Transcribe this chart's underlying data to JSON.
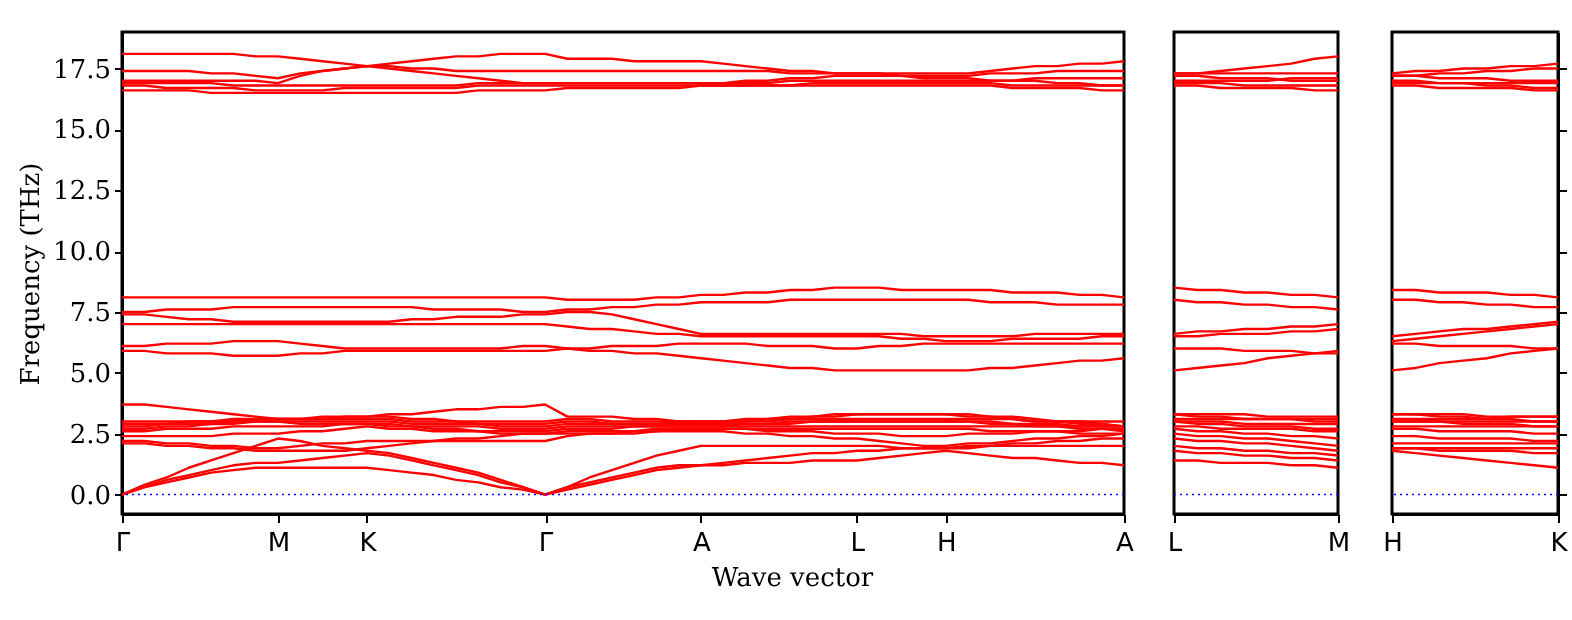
{
  "chart_data": [
    {
      "type": "line",
      "xlabel": "Wave vector",
      "ylabel": "Frequency (THz)",
      "categories": [
        "Γ",
        null,
        null,
        null,
        null,
        null,
        null,
        "M",
        null,
        null,
        null,
        "K",
        null,
        null,
        null,
        null,
        null,
        null,
        null,
        "Γ",
        null,
        null,
        null,
        null,
        null,
        null,
        "A",
        null,
        null,
        null,
        null,
        null,
        null,
        "L",
        null,
        null,
        null,
        "H",
        null,
        null,
        null,
        null,
        null,
        null,
        null,
        "A"
      ],
      "ylim": [
        -0.8,
        19
      ],
      "yticks": [
        {
          "value": 0,
          "label": "0.0"
        },
        2.5,
        {
          "value": 5,
          "label": "5.0"
        },
        7.5,
        {
          "value": 10,
          "label": "10.0"
        },
        12.5,
        {
          "value": 15,
          "label": "15.0"
        },
        17.5
      ],
      "ref_lines": [
        {
          "axis": "y",
          "value": 0,
          "color": "#0000ff",
          "line_style": "dotted"
        }
      ],
      "grid": false,
      "legend": false,
      "series": [
        {
          "color": "#ff0000",
          "values": [
            0,
            0.3,
            0.5,
            0.7,
            0.9,
            1.0,
            1.1,
            1.1,
            1.1,
            1.1,
            1.1,
            1.1,
            1.0,
            0.9,
            0.8,
            0.6,
            0.5,
            0.3,
            0.2,
            0,
            0.2,
            0.4,
            0.6,
            0.8,
            1.0,
            1.1,
            1.2,
            1.2,
            1.3,
            1.3,
            1.3,
            1.4,
            1.4,
            1.4,
            1.5,
            1.6,
            1.7,
            1.8,
            1.7,
            1.6,
            1.5,
            1.5,
            1.4,
            1.3,
            1.3,
            1.2
          ]
        },
        {
          "color": "#ff0000",
          "values": [
            0,
            0.3,
            0.6,
            0.8,
            1.0,
            1.2,
            1.3,
            1.3,
            1.4,
            1.5,
            1.6,
            1.7,
            1.6,
            1.4,
            1.2,
            1.0,
            0.8,
            0.5,
            0.3,
            0,
            0.3,
            0.5,
            0.7,
            0.9,
            1.1,
            1.2,
            1.2,
            1.3,
            1.4,
            1.5,
            1.6,
            1.7,
            1.7,
            1.8,
            1.8,
            1.9,
            1.9,
            1.9,
            1.9,
            2.0,
            2.0,
            2.0,
            2.0,
            2.0,
            2.0,
            2.0
          ]
        },
        {
          "color": "#ff0000",
          "values": [
            0,
            0.4,
            0.7,
            1.1,
            1.4,
            1.7,
            2.0,
            2.3,
            2.2,
            2.0,
            1.9,
            1.8,
            1.7,
            1.5,
            1.3,
            1.1,
            0.9,
            0.6,
            0.3,
            0,
            0.3,
            0.7,
            1.0,
            1.3,
            1.6,
            1.8,
            2.0,
            2.0,
            2.0,
            2.0,
            2.0,
            2.0,
            2.0,
            2.0,
            2.0,
            1.9,
            1.9,
            1.9,
            2.0,
            2.0,
            2.1,
            2.1,
            2.2,
            2.2,
            2.3,
            2.3
          ]
        },
        {
          "color": "#ff0000",
          "values": [
            2.1,
            2.1,
            2.0,
            2.0,
            1.9,
            1.9,
            1.8,
            1.8,
            1.8,
            1.8,
            1.8,
            1.9,
            2.0,
            2.1,
            2.2,
            2.3,
            2.3,
            2.4,
            2.5,
            2.5,
            2.5,
            2.5,
            2.5,
            2.5,
            2.6,
            2.6,
            2.6,
            2.6,
            2.5,
            2.5,
            2.4,
            2.4,
            2.3,
            2.3,
            2.2,
            2.1,
            2.0,
            2.0,
            2.1,
            2.1,
            2.2,
            2.3,
            2.3,
            2.4,
            2.4,
            2.5
          ]
        },
        {
          "color": "#ff0000",
          "values": [
            2.2,
            2.2,
            2.1,
            2.1,
            2.0,
            2.0,
            1.9,
            1.9,
            2.0,
            2.1,
            2.1,
            2.2,
            2.2,
            2.2,
            2.2,
            2.2,
            2.2,
            2.2,
            2.2,
            2.2,
            2.4,
            2.5,
            2.5,
            2.6,
            2.6,
            2.7,
            2.7,
            2.7,
            2.7,
            2.6,
            2.6,
            2.6,
            2.5,
            2.5,
            2.5,
            2.4,
            2.4,
            2.4,
            2.5,
            2.5,
            2.5,
            2.6,
            2.6,
            2.6,
            2.7,
            2.7
          ]
        },
        {
          "color": "#ff0000",
          "values": [
            2.4,
            2.4,
            2.4,
            2.4,
            2.4,
            2.5,
            2.5,
            2.5,
            2.6,
            2.6,
            2.7,
            2.8,
            2.7,
            2.7,
            2.6,
            2.6,
            2.6,
            2.5,
            2.5,
            2.5,
            2.6,
            2.6,
            2.6,
            2.6,
            2.7,
            2.7,
            2.7,
            2.7,
            2.7,
            2.7,
            2.7,
            2.7,
            2.7,
            2.7,
            2.7,
            2.7,
            2.7,
            2.7,
            2.7,
            2.6,
            2.6,
            2.6,
            2.6,
            2.5,
            2.5,
            2.5
          ]
        },
        {
          "color": "#ff0000",
          "values": [
            2.6,
            2.6,
            2.7,
            2.7,
            2.7,
            2.8,
            2.8,
            2.8,
            2.8,
            2.8,
            2.9,
            2.9,
            2.8,
            2.8,
            2.7,
            2.7,
            2.6,
            2.6,
            2.6,
            2.6,
            2.7,
            2.7,
            2.7,
            2.8,
            2.8,
            2.8,
            2.8,
            2.8,
            2.8,
            2.8,
            2.8,
            2.8,
            2.8,
            2.8,
            2.8,
            2.8,
            2.8,
            2.8,
            2.8,
            2.8,
            2.8,
            2.8,
            2.8,
            2.8,
            2.8,
            2.8
          ]
        },
        {
          "color": "#ff0000",
          "values": [
            2.7,
            2.7,
            2.8,
            2.8,
            2.9,
            2.9,
            3.0,
            3.0,
            2.9,
            2.9,
            2.9,
            2.9,
            2.9,
            2.8,
            2.8,
            2.8,
            2.8,
            2.7,
            2.7,
            2.7,
            2.8,
            2.8,
            2.8,
            2.8,
            2.8,
            2.8,
            2.8,
            2.8,
            2.9,
            2.9,
            2.9,
            3.0,
            3.0,
            3.0,
            3.0,
            3.0,
            3.0,
            3.0,
            3.0,
            2.9,
            2.9,
            2.8,
            2.8,
            2.7,
            2.7,
            2.6
          ]
        },
        {
          "color": "#ff0000",
          "values": [
            2.8,
            2.8,
            2.9,
            2.9,
            2.9,
            3.0,
            3.0,
            3.0,
            3.0,
            3.0,
            3.0,
            3.0,
            3.0,
            2.9,
            2.9,
            2.9,
            2.9,
            2.8,
            2.8,
            2.8,
            2.9,
            2.9,
            2.9,
            2.9,
            2.9,
            2.9,
            2.9,
            2.9,
            2.9,
            2.9,
            3.0,
            3.0,
            3.0,
            3.0,
            3.0,
            3.0,
            3.0,
            3.0,
            3.0,
            3.0,
            2.9,
            2.9,
            2.9,
            2.8,
            2.8,
            2.8
          ]
        },
        {
          "color": "#ff0000",
          "values": [
            2.9,
            2.9,
            2.9,
            3.0,
            3.0,
            3.0,
            3.1,
            3.1,
            3.1,
            3.1,
            3.1,
            3.1,
            3.1,
            3.0,
            3.0,
            3.0,
            2.9,
            2.9,
            2.9,
            2.9,
            3.0,
            3.0,
            2.9,
            2.9,
            2.9,
            3.0,
            3.0,
            3.0,
            3.0,
            3.0,
            3.1,
            3.1,
            3.1,
            3.1,
            3.1,
            3.1,
            3.1,
            3.1,
            3.1,
            3.1,
            3.1,
            3.0,
            3.0,
            3.0,
            3.0,
            3.0
          ]
        },
        {
          "color": "#ff0000",
          "values": [
            3.0,
            3.0,
            3.0,
            3.0,
            3.0,
            3.1,
            3.1,
            3.1,
            3.1,
            3.1,
            3.2,
            3.2,
            3.2,
            3.1,
            3.1,
            3.0,
            3.0,
            3.0,
            3.0,
            3.0,
            3.1,
            3.1,
            3.0,
            3.0,
            3.0,
            3.0,
            3.0,
            3.0,
            3.1,
            3.1,
            3.2,
            3.2,
            3.3,
            3.3,
            3.3,
            3.3,
            3.3,
            3.3,
            3.3,
            3.2,
            3.2,
            3.1,
            3.0,
            3.0,
            2.9,
            2.8
          ]
        },
        {
          "color": "#ff0000",
          "values": [
            3.7,
            3.7,
            3.6,
            3.5,
            3.4,
            3.3,
            3.2,
            3.1,
            3.1,
            3.2,
            3.2,
            3.2,
            3.3,
            3.3,
            3.4,
            3.5,
            3.5,
            3.6,
            3.6,
            3.7,
            3.2,
            3.2,
            3.2,
            3.1,
            3.1,
            3.0,
            2.9,
            3.0,
            3.0,
            3.1,
            3.1,
            3.2,
            3.2,
            3.3,
            3.3,
            3.3,
            3.3,
            3.3,
            3.2,
            3.2,
            3.1,
            3.0,
            3.0,
            2.9,
            2.9,
            2.8
          ]
        },
        {
          "color": "#ff0000",
          "values": [
            5.9,
            5.9,
            5.8,
            5.8,
            5.8,
            5.7,
            5.7,
            5.7,
            5.8,
            5.8,
            5.9,
            5.9,
            5.9,
            5.9,
            5.9,
            5.9,
            5.9,
            5.9,
            5.9,
            5.9,
            6.0,
            5.9,
            5.9,
            5.8,
            5.8,
            5.7,
            5.6,
            5.5,
            5.4,
            5.3,
            5.2,
            5.2,
            5.1,
            5.1,
            5.1,
            5.1,
            5.1,
            5.1,
            5.1,
            5.2,
            5.2,
            5.3,
            5.4,
            5.5,
            5.5,
            5.6
          ]
        },
        {
          "color": "#ff0000",
          "values": [
            6.1,
            6.1,
            6.2,
            6.2,
            6.2,
            6.3,
            6.3,
            6.3,
            6.2,
            6.1,
            6.0,
            6.0,
            6.0,
            6.0,
            6.0,
            6.0,
            6.0,
            6.0,
            6.1,
            6.1,
            6.0,
            6.0,
            6.1,
            6.1,
            6.1,
            6.2,
            6.2,
            6.2,
            6.2,
            6.1,
            6.1,
            6.1,
            6.0,
            6.0,
            6.1,
            6.1,
            6.2,
            6.2,
            6.2,
            6.2,
            6.2,
            6.2,
            6.2,
            6.2,
            6.2,
            6.2
          ]
        },
        {
          "color": "#ff0000",
          "values": [
            7.0,
            7.0,
            7.0,
            7.0,
            7.0,
            7.0,
            7.0,
            7.0,
            7.0,
            7.0,
            7.0,
            7.0,
            7.0,
            7.0,
            7.0,
            7.0,
            7.0,
            7.0,
            7.0,
            7.0,
            6.9,
            6.8,
            6.8,
            6.7,
            6.6,
            6.6,
            6.5,
            6.5,
            6.5,
            6.5,
            6.5,
            6.5,
            6.5,
            6.5,
            6.5,
            6.4,
            6.4,
            6.3,
            6.3,
            6.3,
            6.4,
            6.4,
            6.4,
            6.4,
            6.5,
            6.5
          ]
        },
        {
          "color": "#ff0000",
          "values": [
            7.4,
            7.4,
            7.3,
            7.2,
            7.2,
            7.1,
            7.1,
            7.1,
            7.1,
            7.1,
            7.1,
            7.1,
            7.1,
            7.2,
            7.2,
            7.3,
            7.3,
            7.3,
            7.4,
            7.4,
            7.5,
            7.5,
            7.4,
            7.2,
            7.0,
            6.8,
            6.6,
            6.6,
            6.6,
            6.6,
            6.6,
            6.6,
            6.6,
            6.6,
            6.6,
            6.6,
            6.5,
            6.5,
            6.5,
            6.5,
            6.5,
            6.6,
            6.6,
            6.6,
            6.6,
            6.6
          ]
        },
        {
          "color": "#ff0000",
          "values": [
            7.5,
            7.5,
            7.6,
            7.6,
            7.6,
            7.7,
            7.7,
            7.7,
            7.7,
            7.7,
            7.7,
            7.7,
            7.7,
            7.7,
            7.6,
            7.6,
            7.6,
            7.6,
            7.5,
            7.5,
            7.6,
            7.6,
            7.7,
            7.7,
            7.8,
            7.8,
            7.9,
            7.9,
            7.9,
            7.9,
            8.0,
            8.0,
            8.0,
            8.0,
            8.0,
            8.0,
            8.0,
            8.0,
            8.0,
            7.9,
            7.9,
            7.9,
            7.8,
            7.8,
            7.8,
            7.8
          ]
        },
        {
          "color": "#ff0000",
          "values": [
            8.1,
            8.1,
            8.1,
            8.1,
            8.1,
            8.1,
            8.1,
            8.1,
            8.1,
            8.1,
            8.1,
            8.1,
            8.1,
            8.1,
            8.1,
            8.1,
            8.1,
            8.1,
            8.1,
            8.1,
            8.0,
            8.0,
            8.0,
            8.0,
            8.1,
            8.1,
            8.2,
            8.2,
            8.3,
            8.3,
            8.4,
            8.4,
            8.5,
            8.5,
            8.5,
            8.4,
            8.4,
            8.4,
            8.4,
            8.4,
            8.3,
            8.3,
            8.3,
            8.2,
            8.2,
            8.1
          ]
        },
        {
          "color": "#ff0000",
          "values": [
            16.6,
            16.6,
            16.6,
            16.6,
            16.5,
            16.5,
            16.5,
            16.5,
            16.5,
            16.5,
            16.5,
            16.5,
            16.5,
            16.5,
            16.5,
            16.5,
            16.6,
            16.6,
            16.6,
            16.6,
            16.7,
            16.7,
            16.7,
            16.7,
            16.7,
            16.7,
            16.8,
            16.8,
            16.8,
            16.8,
            16.8,
            16.8,
            16.8,
            16.8,
            16.8,
            16.8,
            16.8,
            16.8,
            16.8,
            16.8,
            16.7,
            16.7,
            16.7,
            16.7,
            16.6,
            16.6
          ]
        },
        {
          "color": "#ff0000",
          "values": [
            16.8,
            16.8,
            16.7,
            16.7,
            16.7,
            16.7,
            16.6,
            16.6,
            16.6,
            16.6,
            16.7,
            16.7,
            16.7,
            16.7,
            16.7,
            16.7,
            16.8,
            16.8,
            16.8,
            16.8,
            16.8,
            16.8,
            16.8,
            16.8,
            16.8,
            16.8,
            16.8,
            16.8,
            16.8,
            16.8,
            16.8,
            16.9,
            16.9,
            16.9,
            16.9,
            16.9,
            16.9,
            16.9,
            16.9,
            16.9,
            16.8,
            16.8,
            16.8,
            16.8,
            16.8,
            16.8
          ]
        },
        {
          "color": "#ff0000",
          "values": [
            16.9,
            16.9,
            16.9,
            16.9,
            16.9,
            16.8,
            16.8,
            16.8,
            16.8,
            16.8,
            16.8,
            16.8,
            16.8,
            16.8,
            16.8,
            16.8,
            16.9,
            16.9,
            16.9,
            16.9,
            16.9,
            16.9,
            16.9,
            16.9,
            16.9,
            16.9,
            16.9,
            16.9,
            16.9,
            16.9,
            17.0,
            17.0,
            17.0,
            17.0,
            17.0,
            17.0,
            17.0,
            17.0,
            17.0,
            17.0,
            17.0,
            17.1,
            17.1,
            17.1,
            17.1,
            17.1
          ]
        },
        {
          "color": "#ff0000",
          "values": [
            17.0,
            17.0,
            17.0,
            17.0,
            17.0,
            17.0,
            17.0,
            16.9,
            17.2,
            17.4,
            17.5,
            17.6,
            17.5,
            17.4,
            17.3,
            17.2,
            17.1,
            17.0,
            16.9,
            16.9,
            16.9,
            16.9,
            16.9,
            16.9,
            16.9,
            16.9,
            16.9,
            16.9,
            17.0,
            17.0,
            17.1,
            17.1,
            17.2,
            17.2,
            17.2,
            17.2,
            17.1,
            17.1,
            17.1,
            17.0,
            17.0,
            17.0,
            16.9,
            16.9,
            16.8,
            16.8
          ]
        },
        {
          "color": "#ff0000",
          "values": [
            17.4,
            17.4,
            17.4,
            17.4,
            17.3,
            17.3,
            17.2,
            17.1,
            17.3,
            17.4,
            17.5,
            17.6,
            17.6,
            17.5,
            17.5,
            17.4,
            17.4,
            17.4,
            17.4,
            17.4,
            17.4,
            17.4,
            17.4,
            17.4,
            17.4,
            17.4,
            17.4,
            17.4,
            17.4,
            17.4,
            17.3,
            17.3,
            17.3,
            17.3,
            17.3,
            17.2,
            17.2,
            17.2,
            17.2,
            17.3,
            17.3,
            17.3,
            17.4,
            17.4,
            17.4,
            17.4
          ]
        },
        {
          "color": "#ff0000",
          "values": [
            18.1,
            18.1,
            18.1,
            18.1,
            18.1,
            18.1,
            18.0,
            18.0,
            17.9,
            17.8,
            17.7,
            17.6,
            17.7,
            17.8,
            17.9,
            18.0,
            18.0,
            18.1,
            18.1,
            18.1,
            17.9,
            17.9,
            17.9,
            17.8,
            17.8,
            17.8,
            17.8,
            17.7,
            17.6,
            17.5,
            17.4,
            17.4,
            17.3,
            17.3,
            17.3,
            17.3,
            17.3,
            17.3,
            17.3,
            17.4,
            17.5,
            17.6,
            17.6,
            17.7,
            17.7,
            17.8
          ]
        }
      ]
    },
    {
      "type": "line",
      "categories": [
        "L",
        null,
        null,
        null,
        null,
        null,
        null,
        "M"
      ],
      "ylim": [
        -0.8,
        19
      ],
      "tick_labels": "x",
      "grid": false,
      "legend": false,
      "ref_lines": [
        {
          "axis": "y",
          "value": 0,
          "color": "#0000ff",
          "line_style": "dotted"
        }
      ],
      "series": [
        {
          "color": "#ff0000",
          "values": [
            1.4,
            1.4,
            1.3,
            1.3,
            1.3,
            1.2,
            1.2,
            1.1
          ]
        },
        {
          "color": "#ff0000",
          "values": [
            1.8,
            1.7,
            1.7,
            1.6,
            1.6,
            1.5,
            1.5,
            1.4
          ]
        },
        {
          "color": "#ff0000",
          "values": [
            2.0,
            1.9,
            1.9,
            1.8,
            1.8,
            1.7,
            1.7,
            1.6
          ]
        },
        {
          "color": "#ff0000",
          "values": [
            2.3,
            2.2,
            2.2,
            2.1,
            2.1,
            2.0,
            1.9,
            1.8
          ]
        },
        {
          "color": "#ff0000",
          "values": [
            2.5,
            2.4,
            2.4,
            2.3,
            2.3,
            2.2,
            2.1,
            2.0
          ]
        },
        {
          "color": "#ff0000",
          "values": [
            2.7,
            2.6,
            2.6,
            2.5,
            2.5,
            2.4,
            2.4,
            2.3
          ]
        },
        {
          "color": "#ff0000",
          "values": [
            2.8,
            2.8,
            2.7,
            2.7,
            2.7,
            2.7,
            2.6,
            2.6
          ]
        },
        {
          "color": "#ff0000",
          "values": [
            3.0,
            2.9,
            2.9,
            2.8,
            2.8,
            2.8,
            2.7,
            2.7
          ]
        },
        {
          "color": "#ff0000",
          "values": [
            3.0,
            3.0,
            3.0,
            2.9,
            2.9,
            2.9,
            2.9,
            2.9
          ]
        },
        {
          "color": "#ff0000",
          "values": [
            3.1,
            3.1,
            3.1,
            3.1,
            3.1,
            3.1,
            3.1,
            3.1
          ]
        },
        {
          "color": "#ff0000",
          "values": [
            3.3,
            3.2,
            3.2,
            3.1,
            3.1,
            3.1,
            3.0,
            3.0
          ]
        },
        {
          "color": "#ff0000",
          "values": [
            3.3,
            3.3,
            3.3,
            3.3,
            3.2,
            3.2,
            3.2,
            3.2
          ]
        },
        {
          "color": "#ff0000",
          "values": [
            5.1,
            5.2,
            5.3,
            5.4,
            5.6,
            5.7,
            5.8,
            5.9
          ]
        },
        {
          "color": "#ff0000",
          "values": [
            6.0,
            6.0,
            6.0,
            5.9,
            5.9,
            5.9,
            5.8,
            5.8
          ]
        },
        {
          "color": "#ff0000",
          "values": [
            6.5,
            6.5,
            6.6,
            6.6,
            6.6,
            6.7,
            6.7,
            6.8
          ]
        },
        {
          "color": "#ff0000",
          "values": [
            6.6,
            6.7,
            6.7,
            6.8,
            6.8,
            6.9,
            6.9,
            7.0
          ]
        },
        {
          "color": "#ff0000",
          "values": [
            8.0,
            7.9,
            7.9,
            7.8,
            7.8,
            7.7,
            7.7,
            7.6
          ]
        },
        {
          "color": "#ff0000",
          "values": [
            8.5,
            8.4,
            8.4,
            8.3,
            8.3,
            8.2,
            8.2,
            8.1
          ]
        },
        {
          "color": "#ff0000",
          "values": [
            16.8,
            16.8,
            16.7,
            16.7,
            16.7,
            16.7,
            16.6,
            16.6
          ]
        },
        {
          "color": "#ff0000",
          "values": [
            16.9,
            16.9,
            16.9,
            16.8,
            16.8,
            16.8,
            16.8,
            16.8
          ]
        },
        {
          "color": "#ff0000",
          "values": [
            17.0,
            17.0,
            17.0,
            17.0,
            17.0,
            17.1,
            17.1,
            17.1
          ]
        },
        {
          "color": "#ff0000",
          "values": [
            17.2,
            17.2,
            17.1,
            17.1,
            17.1,
            17.0,
            17.0,
            17.0
          ]
        },
        {
          "color": "#ff0000",
          "values": [
            17.3,
            17.3,
            17.3,
            17.3,
            17.3,
            17.3,
            17.3,
            17.3
          ]
        },
        {
          "color": "#ff0000",
          "values": [
            17.3,
            17.3,
            17.4,
            17.5,
            17.6,
            17.7,
            17.9,
            18.0
          ]
        }
      ]
    },
    {
      "type": "line",
      "categories": [
        "H",
        null,
        null,
        null,
        null,
        null,
        null,
        "K"
      ],
      "ylim": [
        -0.8,
        19
      ],
      "yticks": [
        {
          "value": 0,
          "label": null
        },
        {
          "value": 2.5,
          "label": null
        },
        {
          "value": 5,
          "label": null
        },
        {
          "value": 7.5,
          "label": null
        },
        {
          "value": 10,
          "label": null
        },
        {
          "value": 12.5,
          "label": null
        },
        {
          "value": 15,
          "label": null
        },
        {
          "value": 17.5,
          "label": null
        }
      ],
      "tick_labels": "x",
      "grid": false,
      "legend": false,
      "ref_lines": [
        {
          "axis": "y",
          "value": 0,
          "color": "#0000ff",
          "line_style": "dotted"
        }
      ],
      "series": [
        {
          "color": "#ff0000",
          "values": [
            1.8,
            1.7,
            1.6,
            1.5,
            1.4,
            1.3,
            1.2,
            1.1
          ]
        },
        {
          "color": "#ff0000",
          "values": [
            1.9,
            1.9,
            1.8,
            1.8,
            1.8,
            1.8,
            1.7,
            1.7
          ]
        },
        {
          "color": "#ff0000",
          "values": [
            1.9,
            1.9,
            1.9,
            1.9,
            1.9,
            1.9,
            1.9,
            1.9
          ]
        },
        {
          "color": "#ff0000",
          "values": [
            2.1,
            2.1,
            2.1,
            2.1,
            2.1,
            2.1,
            2.1,
            2.1
          ]
        },
        {
          "color": "#ff0000",
          "values": [
            2.4,
            2.4,
            2.3,
            2.3,
            2.3,
            2.3,
            2.2,
            2.2
          ]
        },
        {
          "color": "#ff0000",
          "values": [
            2.7,
            2.7,
            2.6,
            2.6,
            2.6,
            2.6,
            2.5,
            2.5
          ]
        },
        {
          "color": "#ff0000",
          "values": [
            2.8,
            2.8,
            2.8,
            2.8,
            2.8,
            2.8,
            2.8,
            2.8
          ]
        },
        {
          "color": "#ff0000",
          "values": [
            3.0,
            3.0,
            3.0,
            2.9,
            2.9,
            2.9,
            2.8,
            2.8
          ]
        },
        {
          "color": "#ff0000",
          "values": [
            3.0,
            3.0,
            3.0,
            3.0,
            3.0,
            3.0,
            3.0,
            3.0
          ]
        },
        {
          "color": "#ff0000",
          "values": [
            3.1,
            3.1,
            3.1,
            3.1,
            3.1,
            3.2,
            3.2,
            3.2
          ]
        },
        {
          "color": "#ff0000",
          "values": [
            3.3,
            3.3,
            3.2,
            3.2,
            3.1,
            3.1,
            3.0,
            3.0
          ]
        },
        {
          "color": "#ff0000",
          "values": [
            3.3,
            3.3,
            3.3,
            3.3,
            3.2,
            3.2,
            3.2,
            3.2
          ]
        },
        {
          "color": "#ff0000",
          "values": [
            5.1,
            5.2,
            5.4,
            5.5,
            5.6,
            5.8,
            5.9,
            6.0
          ]
        },
        {
          "color": "#ff0000",
          "values": [
            6.2,
            6.2,
            6.1,
            6.1,
            6.1,
            6.1,
            6.0,
            6.0
          ]
        },
        {
          "color": "#ff0000",
          "values": [
            6.3,
            6.4,
            6.5,
            6.6,
            6.7,
            6.8,
            6.9,
            7.0
          ]
        },
        {
          "color": "#ff0000",
          "values": [
            6.5,
            6.6,
            6.7,
            6.8,
            6.8,
            6.9,
            7.0,
            7.1
          ]
        },
        {
          "color": "#ff0000",
          "values": [
            8.0,
            8.0,
            7.9,
            7.9,
            7.8,
            7.8,
            7.7,
            7.7
          ]
        },
        {
          "color": "#ff0000",
          "values": [
            8.4,
            8.4,
            8.3,
            8.3,
            8.3,
            8.2,
            8.2,
            8.1
          ]
        },
        {
          "color": "#ff0000",
          "values": [
            16.8,
            16.8,
            16.7,
            16.7,
            16.7,
            16.7,
            16.6,
            16.6
          ]
        },
        {
          "color": "#ff0000",
          "values": [
            16.9,
            16.9,
            16.9,
            16.9,
            16.9,
            16.9,
            16.9,
            16.9
          ]
        },
        {
          "color": "#ff0000",
          "values": [
            17.0,
            17.0,
            16.9,
            16.9,
            16.8,
            16.8,
            16.7,
            16.7
          ]
        },
        {
          "color": "#ff0000",
          "values": [
            17.2,
            17.2,
            17.1,
            17.1,
            17.1,
            17.0,
            17.0,
            17.0
          ]
        },
        {
          "color": "#ff0000",
          "values": [
            17.2,
            17.2,
            17.3,
            17.3,
            17.4,
            17.4,
            17.5,
            17.5
          ]
        },
        {
          "color": "#ff0000",
          "values": [
            17.3,
            17.4,
            17.4,
            17.5,
            17.5,
            17.6,
            17.6,
            17.7
          ]
        }
      ]
    }
  ]
}
